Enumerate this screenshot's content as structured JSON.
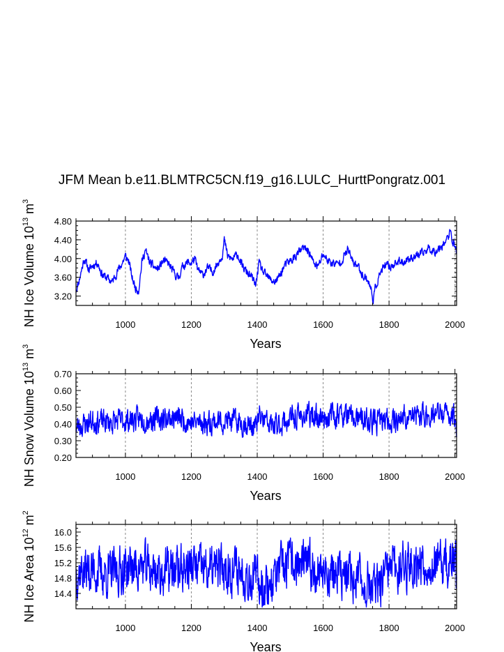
{
  "figure": {
    "title": "JFM Mean b.e11.BLMTRC5CN.f19_g16.LULC_HurttPongratz.001",
    "line_color": "#0000ff",
    "grid_color": "#888888"
  },
  "chart_data": [
    {
      "type": "line",
      "ylabel_main": "NH Ice Volume 10",
      "ylabel_exp": "13",
      "ylabel_unit": " m",
      "ylabel_unit_exp": "3",
      "xlabel": "Years",
      "xlim": [
        850,
        2005
      ],
      "ylim": [
        3.0,
        4.8
      ],
      "yticks": [
        "3.20",
        "3.60",
        "4.00",
        "4.40",
        "4.80"
      ],
      "xticks": [
        "1000",
        "1200",
        "1400",
        "1600",
        "1800",
        "2000"
      ],
      "anchors": [
        [
          850,
          3.32
        ],
        [
          860,
          3.55
        ],
        [
          875,
          4.0
        ],
        [
          890,
          3.75
        ],
        [
          900,
          3.85
        ],
        [
          915,
          3.92
        ],
        [
          930,
          3.65
        ],
        [
          945,
          3.58
        ],
        [
          960,
          3.5
        ],
        [
          975,
          3.72
        ],
        [
          990,
          3.9
        ],
        [
          1000,
          4.05
        ],
        [
          1010,
          3.95
        ],
        [
          1020,
          3.6
        ],
        [
          1030,
          3.38
        ],
        [
          1040,
          3.32
        ],
        [
          1050,
          3.92
        ],
        [
          1060,
          4.18
        ],
        [
          1075,
          3.9
        ],
        [
          1090,
          3.8
        ],
        [
          1100,
          3.78
        ],
        [
          1115,
          3.95
        ],
        [
          1130,
          3.9
        ],
        [
          1145,
          3.72
        ],
        [
          1160,
          3.58
        ],
        [
          1175,
          3.85
        ],
        [
          1190,
          3.92
        ],
        [
          1200,
          3.9
        ],
        [
          1210,
          4.0
        ],
        [
          1220,
          3.75
        ],
        [
          1235,
          3.65
        ],
        [
          1250,
          3.8
        ],
        [
          1265,
          3.72
        ],
        [
          1280,
          3.9
        ],
        [
          1295,
          4.1
        ],
        [
          1300,
          4.4
        ],
        [
          1310,
          4.05
        ],
        [
          1325,
          3.98
        ],
        [
          1340,
          4.1
        ],
        [
          1355,
          3.82
        ],
        [
          1370,
          3.7
        ],
        [
          1385,
          3.58
        ],
        [
          1395,
          3.42
        ],
        [
          1405,
          3.9
        ],
        [
          1420,
          3.68
        ],
        [
          1440,
          3.55
        ],
        [
          1455,
          3.5
        ],
        [
          1470,
          3.65
        ],
        [
          1480,
          3.82
        ],
        [
          1495,
          3.92
        ],
        [
          1510,
          4.0
        ],
        [
          1525,
          4.12
        ],
        [
          1540,
          4.22
        ],
        [
          1555,
          4.18
        ],
        [
          1570,
          3.92
        ],
        [
          1585,
          3.82
        ],
        [
          1600,
          4.1
        ],
        [
          1615,
          3.95
        ],
        [
          1630,
          3.9
        ],
        [
          1645,
          3.88
        ],
        [
          1660,
          4.0
        ],
        [
          1675,
          4.2
        ],
        [
          1690,
          3.92
        ],
        [
          1705,
          3.85
        ],
        [
          1720,
          3.65
        ],
        [
          1735,
          3.55
        ],
        [
          1745,
          3.35
        ],
        [
          1752,
          3.12
        ],
        [
          1760,
          3.42
        ],
        [
          1775,
          3.72
        ],
        [
          1790,
          3.85
        ],
        [
          1805,
          3.82
        ],
        [
          1820,
          3.92
        ],
        [
          1840,
          3.92
        ],
        [
          1860,
          4.0
        ],
        [
          1880,
          4.05
        ],
        [
          1900,
          4.1
        ],
        [
          1920,
          4.22
        ],
        [
          1940,
          4.15
        ],
        [
          1960,
          4.28
        ],
        [
          1975,
          4.4
        ],
        [
          1985,
          4.55
        ],
        [
          1995,
          4.35
        ],
        [
          2005,
          4.15
        ]
      ],
      "noise_amplitude": 0.14,
      "seed": 11
    },
    {
      "type": "line",
      "ylabel_main": "NH Snow Volume 10",
      "ylabel_exp": "13",
      "ylabel_unit": " m",
      "ylabel_unit_exp": "3",
      "xlabel": "Years",
      "xlim": [
        850,
        2005
      ],
      "ylim": [
        0.2,
        0.7
      ],
      "yticks": [
        "0.20",
        "0.30",
        "0.40",
        "0.50",
        "0.60",
        "0.70"
      ],
      "xticks": [
        "1000",
        "1200",
        "1400",
        "1600",
        "1800",
        "2000"
      ],
      "anchors": [
        [
          850,
          0.38
        ],
        [
          900,
          0.42
        ],
        [
          950,
          0.41
        ],
        [
          1000,
          0.42
        ],
        [
          1050,
          0.43
        ],
        [
          1100,
          0.43
        ],
        [
          1150,
          0.44
        ],
        [
          1200,
          0.41
        ],
        [
          1250,
          0.41
        ],
        [
          1300,
          0.42
        ],
        [
          1350,
          0.41
        ],
        [
          1395,
          0.38
        ],
        [
          1405,
          0.44
        ],
        [
          1450,
          0.38
        ],
        [
          1500,
          0.43
        ],
        [
          1550,
          0.45
        ],
        [
          1600,
          0.44
        ],
        [
          1650,
          0.46
        ],
        [
          1700,
          0.43
        ],
        [
          1750,
          0.41
        ],
        [
          1800,
          0.42
        ],
        [
          1850,
          0.44
        ],
        [
          1900,
          0.45
        ],
        [
          1950,
          0.46
        ],
        [
          2000,
          0.45
        ],
        [
          2005,
          0.36
        ]
      ],
      "noise_amplitude": 0.11,
      "seed": 23
    },
    {
      "type": "line",
      "ylabel_main": "NH Ice Area 10",
      "ylabel_exp": "12",
      "ylabel_unit": " m",
      "ylabel_unit_exp": "2",
      "xlabel": "Years",
      "xlim": [
        850,
        2005
      ],
      "ylim": [
        14.0,
        16.2
      ],
      "yticks": [
        "14.4",
        "14.8",
        "15.2",
        "15.6",
        "16.0"
      ],
      "xticks": [
        "1000",
        "1200",
        "1400",
        "1600",
        "1800",
        "2000"
      ],
      "anchors": [
        [
          850,
          15.0
        ],
        [
          900,
          15.0
        ],
        [
          950,
          14.9
        ],
        [
          1000,
          15.05
        ],
        [
          1050,
          15.1
        ],
        [
          1100,
          14.95
        ],
        [
          1150,
          15.0
        ],
        [
          1200,
          15.1
        ],
        [
          1250,
          15.0
        ],
        [
          1300,
          15.05
        ],
        [
          1350,
          15.0
        ],
        [
          1380,
          14.85
        ],
        [
          1400,
          14.75
        ],
        [
          1430,
          14.6
        ],
        [
          1460,
          14.9
        ],
        [
          1500,
          15.2
        ],
        [
          1550,
          15.1
        ],
        [
          1600,
          15.0
        ],
        [
          1650,
          14.85
        ],
        [
          1700,
          14.8
        ],
        [
          1750,
          14.6
        ],
        [
          1760,
          14.4
        ],
        [
          1800,
          15.0
        ],
        [
          1850,
          15.15
        ],
        [
          1900,
          15.2
        ],
        [
          1950,
          15.1
        ],
        [
          2000,
          15.2
        ],
        [
          2005,
          15.0
        ]
      ],
      "noise_amplitude": 0.95,
      "seed": 37
    }
  ]
}
